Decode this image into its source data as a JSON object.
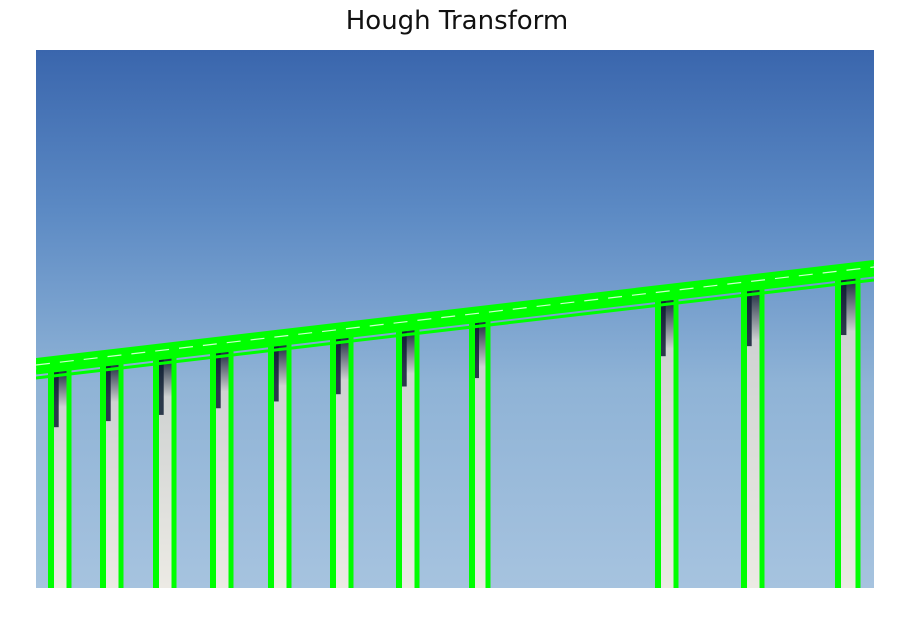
{
  "figure": {
    "title": "Hough Transform"
  },
  "image": {
    "subject": "bridge-pillars-under-sky",
    "sky_colors": [
      "#3a66ad",
      "#5c8ac4",
      "#8fb3d6",
      "#a6c3df"
    ],
    "pillar_color": "#eceae4",
    "pillar_shadow_color": "#0e1d33"
  },
  "overlay": {
    "detected_line_color": "#00ff00",
    "detected_line_kind": "hough-lines"
  }
}
